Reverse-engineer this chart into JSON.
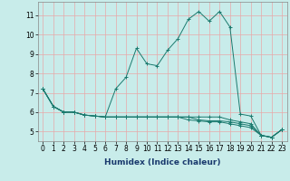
{
  "xlabel": "Humidex (Indice chaleur)",
  "background_color": "#c8ecea",
  "grid_color": "#e8a8a8",
  "line_color": "#1a7a6e",
  "xlim": [
    -0.5,
    23.5
  ],
  "ylim": [
    4.5,
    11.7
  ],
  "yticks": [
    5,
    6,
    7,
    8,
    9,
    10,
    11
  ],
  "xticks": [
    0,
    1,
    2,
    3,
    4,
    5,
    6,
    7,
    8,
    9,
    10,
    11,
    12,
    13,
    14,
    15,
    16,
    17,
    18,
    19,
    20,
    21,
    22,
    23
  ],
  "series": [
    [
      7.2,
      6.3,
      6.0,
      6.0,
      5.85,
      5.8,
      5.75,
      7.2,
      7.8,
      9.3,
      8.5,
      8.4,
      9.2,
      9.8,
      10.8,
      11.2,
      10.7,
      11.2,
      10.4,
      5.9,
      5.8,
      4.8,
      4.7,
      5.1
    ],
    [
      7.2,
      6.3,
      6.0,
      6.0,
      5.85,
      5.8,
      5.75,
      5.75,
      5.75,
      5.75,
      5.75,
      5.75,
      5.75,
      5.75,
      5.75,
      5.75,
      5.75,
      5.75,
      5.6,
      5.5,
      5.4,
      4.8,
      4.7,
      5.1
    ],
    [
      7.2,
      6.3,
      6.0,
      6.0,
      5.85,
      5.8,
      5.75,
      5.75,
      5.75,
      5.75,
      5.75,
      5.75,
      5.75,
      5.75,
      5.75,
      5.6,
      5.55,
      5.55,
      5.5,
      5.4,
      5.3,
      4.8,
      4.7,
      5.1
    ],
    [
      7.2,
      6.3,
      6.0,
      6.0,
      5.85,
      5.8,
      5.75,
      5.75,
      5.75,
      5.75,
      5.75,
      5.75,
      5.75,
      5.75,
      5.6,
      5.55,
      5.5,
      5.5,
      5.4,
      5.3,
      5.2,
      4.8,
      4.7,
      5.1
    ]
  ],
  "tick_fontsize": 5.5,
  "xlabel_fontsize": 6.5,
  "xlabel_color": "#1a3a6e"
}
